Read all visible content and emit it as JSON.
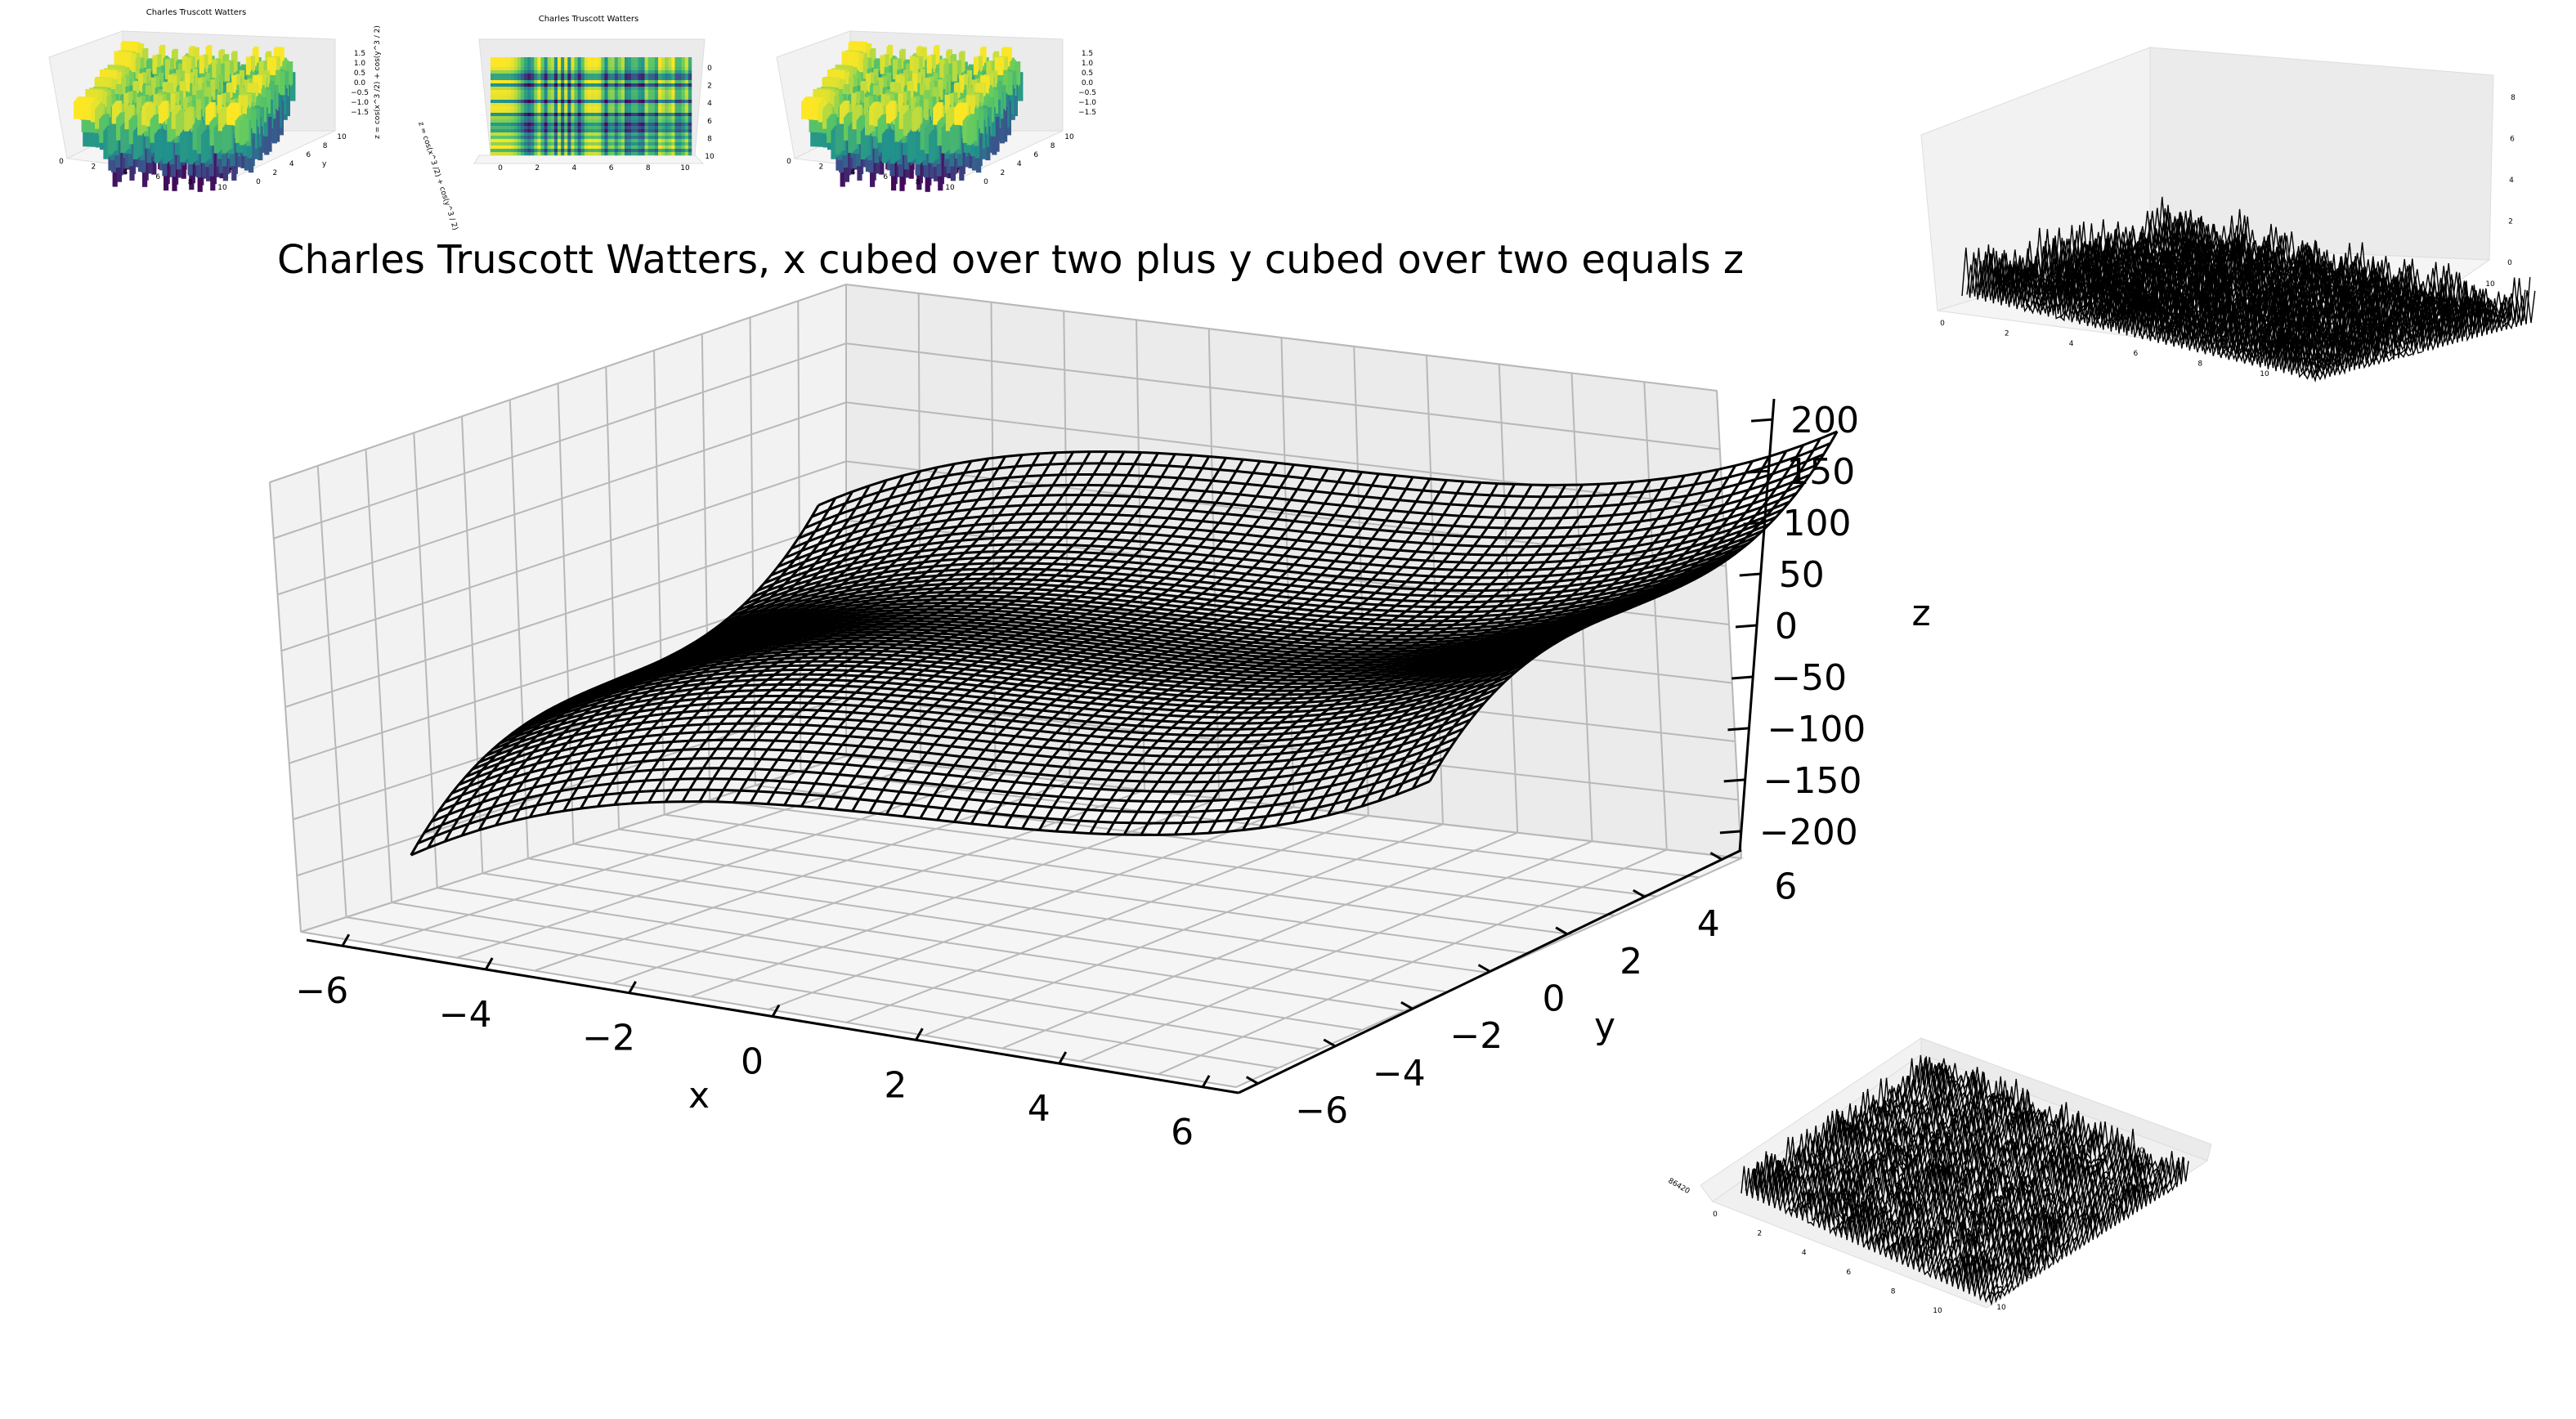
{
  "figure": {
    "title": "Charles Truscott Watters, x cubed over two plus y cubed over two equals z"
  },
  "chart_data": [
    {
      "id": "main",
      "type": "surface",
      "style": "wireframe",
      "color": "#000000",
      "title": "Charles Truscott Watters, x cubed over two plus y cubed over two equals z",
      "xlabel": "x",
      "ylabel": "y",
      "zlabel": "z",
      "xticks": [
        "−6",
        "−4",
        "−2",
        "0",
        "2",
        "4",
        "6"
      ],
      "yticks": [
        "−6",
        "−4",
        "−2",
        "0",
        "2",
        "4",
        "6"
      ],
      "zticks": [
        "200",
        "150",
        "100",
        "50",
        "0",
        "−50",
        "−100",
        "−150",
        "−200"
      ],
      "xlim": [
        -6.5,
        6.5
      ],
      "ylim": [
        -6.5,
        6.5
      ],
      "zlim": [
        -220,
        220
      ],
      "grid": true
    },
    {
      "id": "thumb-1",
      "type": "surface",
      "colormap": "viridis",
      "title": "Charles Truscott Watters",
      "ylabel": "y",
      "zlabel": "z = cos(x^3 /2) + cos(y^3 / 2)",
      "xticks": [
        "0",
        "2",
        "4",
        "6",
        "8",
        "10"
      ],
      "yticks": [
        "0",
        "2",
        "4",
        "6",
        "8",
        "10"
      ],
      "zticks": [
        "1.5",
        "1.0",
        "0.5",
        "0.0",
        "−0.5",
        "−1.0",
        "−1.5"
      ],
      "xlim": [
        0,
        10
      ],
      "ylim": [
        0,
        10
      ],
      "zlim": [
        -2,
        2
      ]
    },
    {
      "id": "thumb-2",
      "type": "surface",
      "colormap": "viridis",
      "title": "Charles Truscott Watters",
      "zlabel": "z = cos(x^3 /2) + cos(y^3 / 2)",
      "xticks": [
        "0",
        "2",
        "4",
        "6",
        "8",
        "10"
      ],
      "yticks": [
        "0",
        "2",
        "4",
        "6",
        "8",
        "10"
      ],
      "xlim": [
        0,
        10
      ],
      "ylim": [
        0,
        10
      ],
      "zlim": [
        -2,
        2
      ]
    },
    {
      "id": "thumb-3",
      "type": "surface",
      "colormap": "viridis",
      "xticks": [
        "0",
        "2",
        "4",
        "6",
        "8",
        "10"
      ],
      "yticks": [
        "0",
        "2",
        "4",
        "6",
        "8",
        "10"
      ],
      "zticks": [
        "1.5",
        "1.0",
        "0.5",
        "0.0",
        "−0.5",
        "−1.0",
        "−1.5"
      ],
      "xlim": [
        0,
        10
      ],
      "ylim": [
        0,
        10
      ],
      "zlim": [
        -2,
        2
      ]
    },
    {
      "id": "wire-top-right",
      "type": "surface",
      "style": "wireframe",
      "color": "#000000",
      "xticks": [
        "0",
        "2",
        "4",
        "6",
        "8",
        "10"
      ],
      "yticks": [
        "0",
        "2",
        "4",
        "6",
        "8",
        "10"
      ],
      "zticks": [
        "0",
        "2",
        "4",
        "6",
        "8"
      ],
      "xlim": [
        0,
        10
      ],
      "ylim": [
        0,
        10
      ],
      "zlim": [
        0,
        9
      ]
    },
    {
      "id": "wire-bottom-right",
      "type": "surface",
      "style": "wireframe",
      "color": "#000000",
      "xticks": [
        "0",
        "2",
        "4",
        "6",
        "8",
        "10"
      ],
      "yticks": [
        "0",
        "2",
        "4",
        "6",
        "8",
        "10"
      ],
      "zticks": [
        "8",
        "6",
        "4",
        "2",
        "0"
      ],
      "xlim": [
        0,
        10
      ],
      "ylim": [
        0,
        10
      ],
      "zlim": [
        0,
        9
      ]
    }
  ]
}
